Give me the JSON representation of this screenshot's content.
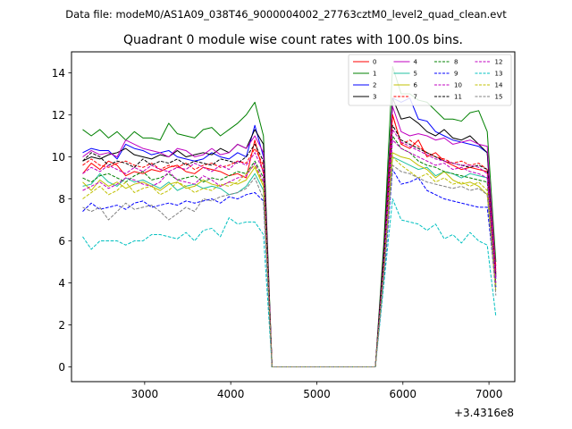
{
  "suptitle": "Data file: modeM0/AS1A09_038T46_9000004002_27763cztM0_level2_quad_clean.evt",
  "chart_data": {
    "type": "line",
    "title": "Quadrant 0 module wise count rates with 100.0s bins.",
    "xlabel": "",
    "ylabel": "",
    "x_offset_label": "+3.4316e8",
    "xlim": [
      2150,
      7300
    ],
    "ylim": [
      -0.7,
      15.0
    ],
    "xticks": [
      3000,
      4000,
      5000,
      6000,
      7000
    ],
    "xtick_labels": [
      "3000",
      "4000",
      "5000",
      "6000",
      "7000"
    ],
    "yticks": [
      0,
      2,
      4,
      6,
      8,
      10,
      12,
      14
    ],
    "ytick_labels": [
      "0",
      "2",
      "4",
      "6",
      "8",
      "10",
      "12",
      "14"
    ],
    "grid": false,
    "legend_placement": "top-right",
    "legend_columns": 4,
    "x": [
      2280,
      2380,
      2480,
      2580,
      2680,
      2780,
      2880,
      2980,
      3080,
      3180,
      3280,
      3380,
      3480,
      3580,
      3680,
      3780,
      3880,
      3980,
      4080,
      4180,
      4280,
      4380,
      4480,
      4580,
      4680,
      4780,
      4880,
      4980,
      5080,
      5180,
      5280,
      5380,
      5480,
      5580,
      5680,
      5780,
      5880,
      5980,
      6080,
      6180,
      6280,
      6380,
      6480,
      6580,
      6680,
      6780,
      6880,
      6980,
      7080
    ],
    "series": [
      {
        "name": "0",
        "color": "#ff0000",
        "dash": "solid",
        "values": [
          9.2,
          9.7,
          9.4,
          9.8,
          9.6,
          9.1,
          9.3,
          9.2,
          9.4,
          9.3,
          9.5,
          9.6,
          9.3,
          9.2,
          9.5,
          9.4,
          9.3,
          9.1,
          9.2,
          9.0,
          10.8,
          9.2,
          0,
          0,
          0,
          0,
          0,
          0,
          0,
          0,
          0,
          0,
          0,
          0,
          0,
          4.8,
          12.0,
          10.6,
          10.4,
          10.8,
          10.0,
          10.2,
          9.8,
          9.6,
          9.4,
          9.5,
          9.4,
          9.3,
          4.8
        ]
      },
      {
        "name": "1",
        "color": "#008000",
        "dash": "solid",
        "values": [
          11.3,
          11.0,
          11.3,
          10.9,
          11.2,
          10.8,
          11.2,
          10.9,
          10.9,
          10.8,
          11.6,
          11.1,
          11.0,
          10.9,
          11.3,
          11.4,
          11.0,
          11.3,
          11.6,
          12.0,
          12.6,
          11.0,
          0,
          0,
          0,
          0,
          0,
          0,
          0,
          0,
          0,
          0,
          0,
          0,
          0,
          6.0,
          14.3,
          13.0,
          13.0,
          12.7,
          12.6,
          12.2,
          11.8,
          11.8,
          11.7,
          12.1,
          12.2,
          11.2,
          5.0
        ]
      },
      {
        "name": "2",
        "color": "#0000ff",
        "dash": "solid",
        "values": [
          10.2,
          10.4,
          10.3,
          10.3,
          9.9,
          10.6,
          10.4,
          10.3,
          10.1,
          10.2,
          10.3,
          10.0,
          9.9,
          9.8,
          9.9,
          10.2,
          10.0,
          9.9,
          10.2,
          10.0,
          11.5,
          10.0,
          0,
          0,
          0,
          0,
          0,
          0,
          0,
          0,
          0,
          0,
          0,
          0,
          0,
          5.5,
          12.8,
          12.6,
          12.8,
          11.8,
          11.7,
          11.2,
          11.0,
          10.8,
          10.7,
          10.6,
          10.5,
          10.2,
          4.2
        ]
      },
      {
        "name": "3",
        "color": "#000000",
        "dash": "solid",
        "values": [
          9.8,
          10.0,
          9.9,
          10.1,
          10.2,
          10.4,
          10.1,
          10.0,
          9.9,
          10.1,
          10.0,
          10.3,
          10.0,
          10.1,
          10.2,
          10.1,
          10.4,
          10.2,
          10.6,
          10.4,
          11.3,
          10.6,
          0,
          0,
          0,
          0,
          0,
          0,
          0,
          0,
          0,
          0,
          0,
          0,
          0,
          5.6,
          12.8,
          11.8,
          11.9,
          11.6,
          11.2,
          11.0,
          11.3,
          10.9,
          10.8,
          11.0,
          10.6,
          10.2,
          4.4
        ]
      },
      {
        "name": "4",
        "color": "#c000c0",
        "dash": "solid",
        "values": [
          10.0,
          10.3,
          10.1,
          10.2,
          10.0,
          10.8,
          10.6,
          10.4,
          10.3,
          10.2,
          10.0,
          10.4,
          10.3,
          10.0,
          10.1,
          10.4,
          10.1,
          10.2,
          10.6,
          10.4,
          11.0,
          10.2,
          0,
          0,
          0,
          0,
          0,
          0,
          0,
          0,
          0,
          0,
          0,
          0,
          0,
          5.3,
          12.4,
          11.2,
          11.0,
          11.1,
          11.0,
          10.8,
          10.9,
          10.6,
          10.7,
          10.8,
          10.6,
          10.5,
          4.6
        ]
      },
      {
        "name": "5",
        "color": "#20c0a0",
        "dash": "solid",
        "values": [
          8.6,
          8.7,
          9.2,
          8.8,
          8.6,
          9.0,
          8.8,
          8.9,
          8.7,
          8.5,
          8.8,
          8.4,
          8.6,
          8.7,
          8.5,
          8.6,
          8.5,
          8.2,
          8.3,
          8.6,
          9.2,
          8.4,
          0,
          0,
          0,
          0,
          0,
          0,
          0,
          0,
          0,
          0,
          0,
          0,
          0,
          4.6,
          10.0,
          9.8,
          9.6,
          9.4,
          9.5,
          9.1,
          9.3,
          9.2,
          9.0,
          9.2,
          9.1,
          9.0,
          3.8
        ]
      },
      {
        "name": "6",
        "color": "#c0c000",
        "dash": "solid",
        "values": [
          8.8,
          8.4,
          8.9,
          8.6,
          8.8,
          8.5,
          8.7,
          8.8,
          8.6,
          8.4,
          8.7,
          8.8,
          8.5,
          8.6,
          8.9,
          8.7,
          8.6,
          8.8,
          8.7,
          8.9,
          9.5,
          8.6,
          0,
          0,
          0,
          0,
          0,
          0,
          0,
          0,
          0,
          0,
          0,
          0,
          0,
          4.7,
          10.2,
          10.0,
          9.9,
          9.6,
          9.4,
          9.0,
          9.3,
          8.9,
          8.7,
          8.8,
          8.6,
          8.2,
          3.9
        ]
      },
      {
        "name": "7",
        "color": "#ff0000",
        "dash": "dashed",
        "values": [
          9.6,
          9.9,
          9.6,
          9.5,
          9.7,
          9.8,
          9.6,
          9.5,
          9.7,
          9.4,
          9.6,
          9.5,
          9.7,
          9.4,
          9.6,
          9.7,
          9.5,
          9.6,
          9.8,
          9.7,
          10.4,
          9.6,
          0,
          0,
          0,
          0,
          0,
          0,
          0,
          0,
          0,
          0,
          0,
          0,
          0,
          5.2,
          12.0,
          10.6,
          10.8,
          10.5,
          10.2,
          10.0,
          9.9,
          9.7,
          9.8,
          9.6,
          9.7,
          9.4,
          4.5
        ]
      },
      {
        "name": "8",
        "color": "#008000",
        "dash": "dashed",
        "values": [
          9.0,
          8.8,
          9.1,
          9.2,
          9.0,
          8.8,
          9.1,
          9.3,
          8.9,
          9.0,
          9.2,
          8.9,
          9.0,
          9.1,
          8.8,
          9.0,
          8.9,
          9.1,
          9.3,
          9.2,
          9.8,
          9.0,
          0,
          0,
          0,
          0,
          0,
          0,
          0,
          0,
          0,
          0,
          0,
          0,
          0,
          4.9,
          11.0,
          10.4,
          10.2,
          9.8,
          9.6,
          9.5,
          9.3,
          9.2,
          9.1,
          9.0,
          8.9,
          8.8,
          4.0
        ]
      },
      {
        "name": "9",
        "color": "#0000ff",
        "dash": "dashed",
        "values": [
          7.4,
          7.8,
          7.5,
          7.6,
          7.7,
          7.5,
          7.8,
          7.9,
          7.6,
          7.7,
          7.8,
          7.7,
          7.9,
          7.8,
          7.9,
          8.0,
          7.8,
          8.1,
          8.0,
          8.2,
          8.3,
          7.9,
          0,
          0,
          0,
          0,
          0,
          0,
          0,
          0,
          0,
          0,
          0,
          0,
          0,
          4.2,
          9.4,
          8.7,
          8.8,
          9.0,
          8.4,
          8.2,
          8.0,
          7.9,
          7.8,
          7.7,
          7.6,
          7.6,
          3.8
        ]
      },
      {
        "name": "10",
        "color": "#c000c0",
        "dash": "dashed",
        "values": [
          8.4,
          8.6,
          8.8,
          8.5,
          8.7,
          9.0,
          8.9,
          8.7,
          8.6,
          8.8,
          9.3,
          8.9,
          8.8,
          8.7,
          9.1,
          8.9,
          8.6,
          8.8,
          9.0,
          9.1,
          9.7,
          8.8,
          0,
          0,
          0,
          0,
          0,
          0,
          0,
          0,
          0,
          0,
          0,
          0,
          0,
          4.8,
          10.8,
          10.4,
          10.2,
          10.0,
          9.8,
          9.6,
          9.7,
          9.4,
          9.5,
          9.3,
          9.2,
          9.0,
          4.0
        ]
      },
      {
        "name": "11",
        "color": "#000000",
        "dash": "dashed",
        "values": [
          9.8,
          10.2,
          10.0,
          9.6,
          9.8,
          9.7,
          9.5,
          9.9,
          9.6,
          9.8,
          9.7,
          9.9,
          9.6,
          9.8,
          9.7,
          9.6,
          9.9,
          9.8,
          9.7,
          10.0,
          10.6,
          9.8,
          0,
          0,
          0,
          0,
          0,
          0,
          0,
          0,
          0,
          0,
          0,
          0,
          0,
          5.2,
          11.5,
          10.8,
          10.6,
          10.4,
          10.2,
          10.0,
          9.8,
          9.7,
          9.6,
          9.5,
          9.6,
          9.4,
          4.3
        ]
      },
      {
        "name": "12",
        "color": "#c000c0",
        "dash": "dashed",
        "values": [
          9.2,
          9.5,
          9.3,
          9.6,
          9.4,
          9.2,
          9.5,
          9.3,
          9.6,
          9.4,
          9.3,
          9.5,
          9.4,
          9.7,
          9.5,
          9.3,
          9.6,
          9.4,
          9.8,
          9.6,
          10.2,
          9.3,
          0,
          0,
          0,
          0,
          0,
          0,
          0,
          0,
          0,
          0,
          0,
          0,
          0,
          5.0,
          11.3,
          10.7,
          10.5,
          10.3,
          10.1,
          9.9,
          9.8,
          9.7,
          9.6,
          9.6,
          9.5,
          9.2,
          4.2
        ]
      },
      {
        "name": "13",
        "color": "#00c0c0",
        "dash": "dashed",
        "values": [
          6.2,
          5.6,
          6.0,
          6.0,
          6.0,
          5.8,
          6.0,
          6.0,
          6.3,
          6.3,
          6.2,
          6.1,
          6.4,
          6.0,
          6.5,
          6.6,
          6.2,
          7.1,
          6.8,
          6.9,
          6.9,
          6.3,
          0,
          0,
          0,
          0,
          0,
          0,
          0,
          0,
          0,
          0,
          0,
          0,
          0,
          4.0,
          8.0,
          7.0,
          6.9,
          6.8,
          6.5,
          6.8,
          6.1,
          6.3,
          5.9,
          6.4,
          6.0,
          5.8,
          2.4
        ]
      },
      {
        "name": "14",
        "color": "#c0c000",
        "dash": "dashed",
        "values": [
          8.0,
          8.3,
          8.6,
          8.2,
          8.4,
          8.8,
          8.3,
          8.5,
          8.6,
          8.2,
          8.4,
          8.8,
          8.6,
          8.3,
          8.5,
          8.4,
          8.7,
          8.6,
          8.8,
          9.2,
          9.6,
          8.7,
          0,
          0,
          0,
          0,
          0,
          0,
          0,
          0,
          0,
          0,
          0,
          0,
          0,
          4.6,
          10.0,
          9.6,
          9.3,
          9.0,
          9.2,
          8.8,
          9.0,
          8.7,
          8.8,
          8.6,
          8.8,
          8.4,
          3.6
        ]
      },
      {
        "name": "15",
        "color": "#808080",
        "dash": "dashed",
        "values": [
          7.6,
          7.4,
          7.6,
          7.0,
          7.4,
          7.8,
          7.5,
          7.6,
          7.7,
          7.4,
          7.0,
          7.3,
          7.6,
          7.4,
          8.0,
          7.9,
          8.1,
          8.2,
          8.3,
          8.5,
          9.0,
          8.0,
          0,
          0,
          0,
          0,
          0,
          0,
          0,
          0,
          0,
          0,
          0,
          0,
          0,
          4.4,
          9.6,
          9.3,
          9.2,
          9.0,
          8.8,
          8.7,
          8.6,
          8.5,
          8.6,
          8.4,
          8.5,
          8.2,
          3.4
        ]
      }
    ]
  }
}
